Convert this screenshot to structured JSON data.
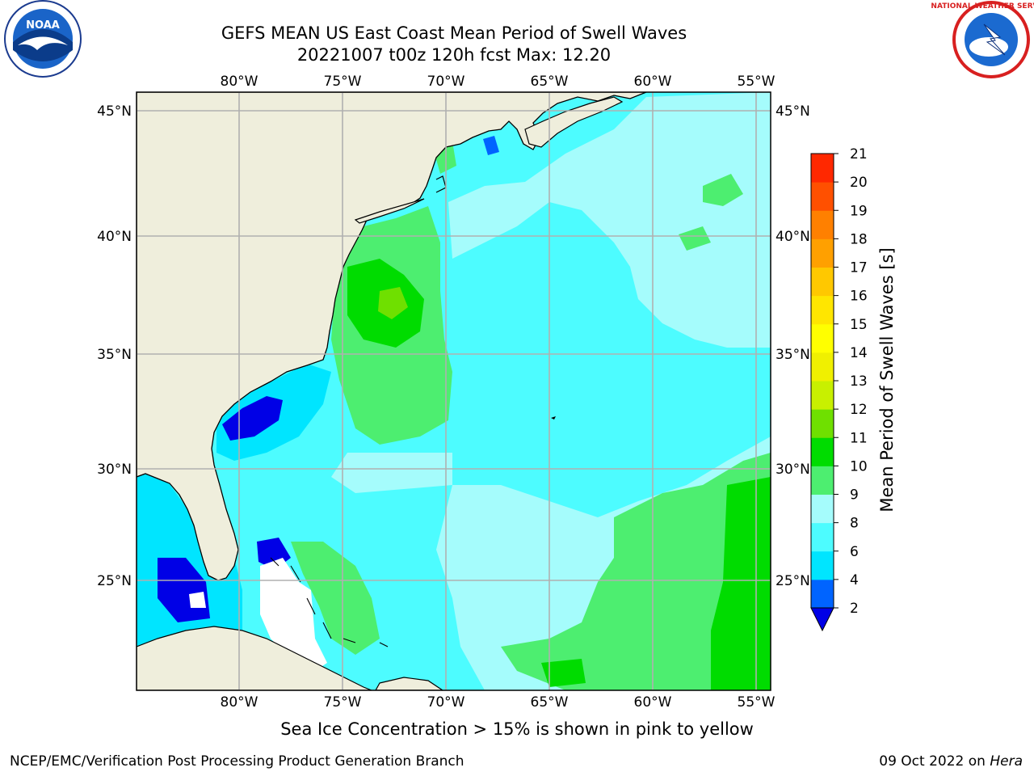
{
  "title_line1": "GEFS MEAN US East Coast Mean Period of Swell Waves",
  "title_line2": "20221007 t00z 120h fcst   Max: 12.20",
  "logos": {
    "left": "NOAA",
    "right": "NATIONAL WEATHER SERVICE"
  },
  "map": {
    "lon_labels": [
      "80°W",
      "75°W",
      "70°W",
      "65°W",
      "60°W",
      "55°W"
    ],
    "lat_labels": [
      "45°N",
      "40°N",
      "35°N",
      "30°N",
      "25°N"
    ],
    "colors": {
      "land": "#efeedc",
      "grid": "#b0b0b0",
      "coast": "#000000"
    }
  },
  "colorbar": {
    "label": "Mean Period of Swell Waves [s]",
    "ticks": [
      "2",
      "4",
      "6",
      "8",
      "9",
      "10",
      "11",
      "12",
      "13",
      "14",
      "15",
      "16",
      "17",
      "18",
      "19",
      "20",
      "21"
    ],
    "colors": [
      "#0064ff",
      "#00e5ff",
      "#4dfcff",
      "#a5fcfc",
      "#4dee70",
      "#00dc00",
      "#6fe000",
      "#c8f000",
      "#f0f000",
      "#ffff00",
      "#ffe600",
      "#ffc800",
      "#ffa000",
      "#ff8000",
      "#ff5000",
      "#ff2800"
    ],
    "under_color": "#0000e6"
  },
  "note": "Sea Ice Concentration > 15% is shown in pink to yellow",
  "footer_left": "NCEP/EMC/Verification Post Processing Product Generation Branch",
  "footer_date": "09 Oct 2022 on ",
  "footer_host": "Hera"
}
